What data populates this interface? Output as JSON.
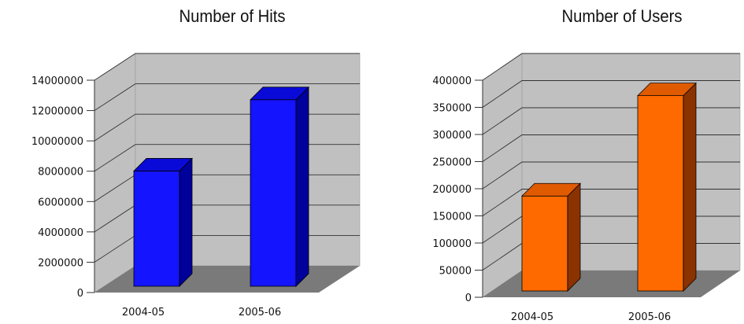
{
  "chart_data": [
    {
      "type": "bar",
      "title": "Number of Hits",
      "categories": [
        "2004-05",
        "2005-06"
      ],
      "values": [
        7600000,
        12300000
      ],
      "ylim": [
        0,
        14000000
      ],
      "yticks": [
        "0",
        "2000000",
        "4000000",
        "6000000",
        "8000000",
        "10000000",
        "12000000",
        "14000000"
      ],
      "bar_color": "#1414ff",
      "bar_side_color": "#00009a",
      "bar_top_color": "#0a0ad8"
    },
    {
      "type": "bar",
      "title": "Number of Users",
      "categories": [
        "2004-05",
        "2005-06"
      ],
      "values": [
        175000,
        360000
      ],
      "ylim": [
        0,
        400000
      ],
      "yticks": [
        "0",
        "50000",
        "100000",
        "150000",
        "200000",
        "250000",
        "300000",
        "350000",
        "400000"
      ],
      "bar_color": "#ff6a00",
      "bar_side_color": "#8a3300",
      "bar_top_color": "#e05a00"
    }
  ],
  "style": {
    "wall_color": "#c0c0c0",
    "floor_color": "#7a7a7a",
    "grid_color": "#333333"
  }
}
